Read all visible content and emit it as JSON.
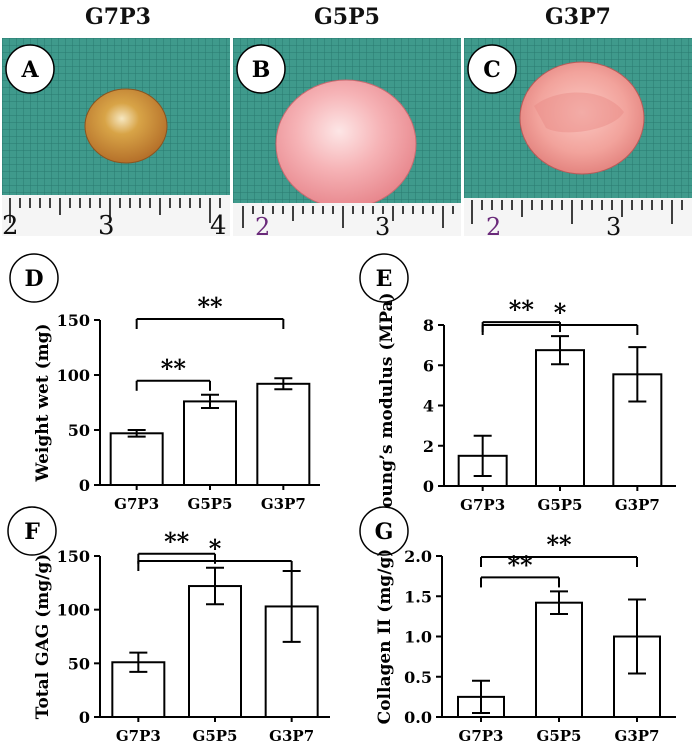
{
  "photos": [
    {
      "header": "G7P3",
      "panel": "A",
      "ruler": [
        "2",
        "3",
        "4"
      ]
    },
    {
      "header": "G5P5",
      "panel": "B",
      "ruler": [
        "2",
        "3"
      ]
    },
    {
      "header": "G3P7",
      "panel": "C",
      "ruler": [
        "2",
        "3"
      ]
    }
  ],
  "colors": {
    "mat": "#3f9a8c",
    "grid": "#1f6d63",
    "tissueA": "#cf9a3c",
    "tissueB": "#f2a8ad",
    "tissueC": "#f0a0a0",
    "bar": "#ffffff",
    "stroke": "#000000"
  },
  "chart_data": [
    {
      "panel": "D",
      "type": "bar",
      "categories": [
        "G7P3",
        "G5P5",
        "G3P7"
      ],
      "values": [
        47,
        76,
        92
      ],
      "errors": [
        3,
        6,
        5
      ],
      "ylabel": "Weight wet (mg)",
      "ylim": [
        0,
        150
      ],
      "yticks": [
        "0",
        "50",
        "100",
        "150"
      ],
      "significance": [
        {
          "from": 0,
          "to": 1,
          "label": "**"
        },
        {
          "from": 0,
          "to": 2,
          "label": "**"
        }
      ]
    },
    {
      "panel": "E",
      "type": "bar",
      "categories": [
        "G7P3",
        "G5P5",
        "G3P7"
      ],
      "values": [
        1.5,
        6.75,
        5.55
      ],
      "errors": [
        1.0,
        0.7,
        1.35
      ],
      "ylabel": "Young’s modulus (MPa)",
      "ylim": [
        0,
        8
      ],
      "yticks": [
        "0",
        "2",
        "4",
        "6",
        "8"
      ],
      "significance": [
        {
          "from": 0,
          "to": 1,
          "label": "**"
        },
        {
          "from": 0,
          "to": 2,
          "label": "*"
        }
      ]
    },
    {
      "panel": "F",
      "type": "bar",
      "categories": [
        "G7P3",
        "G5P5",
        "G3P7"
      ],
      "values": [
        51,
        122,
        103
      ],
      "errors": [
        9,
        17,
        33
      ],
      "ylabel": "Total GAG (mg/g)",
      "ylim": [
        0,
        150
      ],
      "yticks": [
        "0",
        "50",
        "100",
        "150"
      ],
      "significance": [
        {
          "from": 0,
          "to": 1,
          "label": "**"
        },
        {
          "from": 0,
          "to": 2,
          "label": "*"
        }
      ]
    },
    {
      "panel": "G",
      "type": "bar",
      "categories": [
        "G7P3",
        "G5P5",
        "G3P7"
      ],
      "values": [
        0.25,
        1.42,
        1.0
      ],
      "errors": [
        0.2,
        0.14,
        0.46
      ],
      "ylabel": "Collagen II (mg/g)",
      "ylim": [
        0,
        2.0
      ],
      "yticks": [
        "0.0",
        "0.5",
        "1.0",
        "1.5",
        "2.0"
      ],
      "significance": [
        {
          "from": 0,
          "to": 1,
          "label": "**"
        },
        {
          "from": 0,
          "to": 2,
          "label": "**"
        }
      ]
    }
  ]
}
